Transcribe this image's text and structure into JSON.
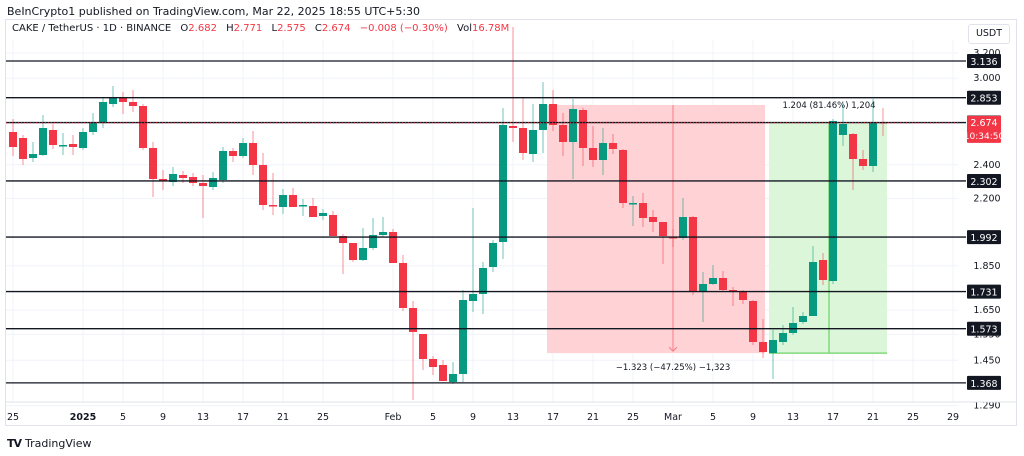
{
  "publisher_line": "BeInCrypto1 published on TradingView.com, Mar 22, 2025 18:55 UTC+5:30",
  "legend": {
    "symbol": "CAKE / TetherUS · 1D · BINANCE",
    "o_label": "O",
    "o": "2.682",
    "h_label": "H",
    "h": "2.771",
    "l_label": "L",
    "l": "2.575",
    "c_label": "C",
    "c": "2.674",
    "change": "−0.008 (−0.30%)",
    "vol_label": "Vol",
    "vol": "16.78M"
  },
  "currency": "USDT",
  "footer_brand": "TradingView",
  "colors": {
    "up": "#089981",
    "down": "#f23645",
    "short_zone": "#ffcdd2",
    "long_zone": "#d8f5d6",
    "level_line": "#131722"
  },
  "chart_data": {
    "type": "candlestick",
    "title": "CAKE / TetherUS · 1D · BINANCE",
    "scale": "log",
    "ylim": [
      1.25,
      3.35
    ],
    "y_ticks": [
      "3.200",
      "3.000",
      "2.400",
      "2.200",
      "1.850",
      "1.650",
      "1.550",
      "1.450",
      "1.290"
    ],
    "x_ticks": [
      {
        "label": "25",
        "day": 0
      },
      {
        "label": "2025",
        "day": 7,
        "bold": true
      },
      {
        "label": "5",
        "day": 11
      },
      {
        "label": "9",
        "day": 15
      },
      {
        "label": "13",
        "day": 19
      },
      {
        "label": "17",
        "day": 23
      },
      {
        "label": "21",
        "day": 27
      },
      {
        "label": "25",
        "day": 31
      },
      {
        "label": "Feb",
        "day": 38
      },
      {
        "label": "5",
        "day": 42
      },
      {
        "label": "9",
        "day": 46
      },
      {
        "label": "13",
        "day": 50
      },
      {
        "label": "17",
        "day": 54
      },
      {
        "label": "21",
        "day": 58
      },
      {
        "label": "25",
        "day": 62
      },
      {
        "label": "Mar",
        "day": 66
      },
      {
        "label": "5",
        "day": 70
      },
      {
        "label": "9",
        "day": 74
      },
      {
        "label": "13",
        "day": 78
      },
      {
        "label": "17",
        "day": 82
      },
      {
        "label": "21",
        "day": 86
      },
      {
        "label": "25",
        "day": 90
      },
      {
        "label": "29",
        "day": 94
      }
    ],
    "horizontal_levels": [
      "3.136",
      "2.853",
      "2.676",
      "2.302",
      "1.992",
      "1.731",
      "1.573",
      "1.368"
    ],
    "last_price": {
      "value": "2.674",
      "countdown": "10:34:50"
    },
    "short_position": {
      "label": "−1.323 (−47.25%) −1,323",
      "from_day": 54,
      "to_day": 75,
      "entry": 2.8,
      "target": 1.477
    },
    "long_position": {
      "label": "1.204 (81.46%) 1,204",
      "from_day": 76,
      "to_day": 87,
      "entry": 1.477,
      "target": 2.681
    },
    "candles_yp": [
      [
        132,
        119,
        156,
        147
      ],
      [
        138,
        135,
        165,
        159
      ],
      [
        158,
        142,
        162,
        154
      ],
      [
        155,
        115,
        156,
        128
      ],
      [
        130,
        124,
        149,
        145
      ],
      [
        146,
        133,
        155,
        145
      ],
      [
        144,
        135,
        155,
        147
      ],
      [
        148,
        128,
        150,
        132
      ],
      [
        132,
        113,
        135,
        122
      ],
      [
        122,
        98,
        128,
        102
      ],
      [
        104,
        86,
        107,
        98
      ],
      [
        98,
        92,
        114,
        102
      ],
      [
        102,
        90,
        112,
        106
      ],
      [
        106,
        104,
        150,
        148
      ],
      [
        148,
        142,
        197,
        179
      ],
      [
        179,
        170,
        190,
        180
      ],
      [
        182,
        167,
        186,
        174
      ],
      [
        175,
        171,
        183,
        178
      ],
      [
        177,
        173,
        186,
        183
      ],
      [
        183,
        175,
        218,
        186
      ],
      [
        187,
        172,
        190,
        178
      ],
      [
        180,
        147,
        183,
        151
      ],
      [
        151,
        148,
        162,
        156
      ],
      [
        156,
        138,
        158,
        143
      ],
      [
        143,
        131,
        175,
        165
      ],
      [
        165,
        153,
        210,
        205
      ],
      [
        205,
        173,
        215,
        206
      ],
      [
        207,
        189,
        214,
        195
      ],
      [
        195,
        188,
        207,
        207
      ],
      [
        206,
        199,
        216,
        205
      ],
      [
        206,
        198,
        217,
        217
      ],
      [
        216,
        209,
        220,
        213
      ],
      [
        215,
        211,
        236,
        236
      ],
      [
        236,
        234,
        274,
        243
      ],
      [
        243,
        243,
        262,
        260
      ],
      [
        260,
        228,
        261,
        248
      ],
      [
        248,
        218,
        250,
        235
      ],
      [
        235,
        217,
        237,
        232
      ],
      [
        232,
        229,
        263,
        263
      ],
      [
        263,
        255,
        311,
        308
      ],
      [
        308,
        301,
        400,
        332
      ],
      [
        334,
        334,
        370,
        359
      ],
      [
        359,
        356,
        375,
        367
      ],
      [
        365,
        360,
        381,
        381
      ],
      [
        382,
        362,
        384,
        374
      ],
      [
        374,
        290,
        382,
        300
      ],
      [
        301,
        208,
        312,
        294
      ],
      [
        294,
        262,
        314,
        268
      ],
      [
        267,
        240,
        272,
        243
      ],
      [
        242,
        108,
        259,
        125
      ],
      [
        126,
        27,
        142,
        128
      ],
      [
        128,
        97,
        160,
        153
      ],
      [
        154,
        104,
        162,
        130
      ],
      [
        130,
        82,
        153,
        104
      ],
      [
        104,
        90,
        131,
        125
      ],
      [
        125,
        113,
        156,
        142
      ],
      [
        142,
        99,
        179,
        109
      ],
      [
        110,
        108,
        166,
        148
      ],
      [
        148,
        126,
        167,
        160
      ],
      [
        160,
        128,
        175,
        143
      ],
      [
        143,
        134,
        154,
        149
      ],
      [
        150,
        149,
        208,
        203
      ],
      [
        204,
        196,
        226,
        203
      ],
      [
        203,
        193,
        227,
        218
      ],
      [
        217,
        210,
        232,
        222
      ],
      [
        222,
        222,
        264,
        236
      ],
      [
        237,
        229,
        247,
        238
      ],
      [
        238,
        198,
        240,
        217
      ],
      [
        217,
        216,
        295,
        292
      ],
      [
        292,
        272,
        322,
        284
      ],
      [
        284,
        265,
        285,
        278
      ],
      [
        278,
        271,
        292,
        290
      ],
      [
        290,
        287,
        306,
        291
      ],
      [
        291,
        290,
        304,
        300
      ],
      [
        301,
        300,
        345,
        342
      ],
      [
        342,
        319,
        358,
        352
      ],
      [
        353,
        330,
        379,
        340
      ],
      [
        342,
        325,
        345,
        333
      ],
      [
        333,
        307,
        335,
        323
      ],
      [
        322,
        312,
        324,
        316
      ],
      [
        316,
        246,
        316,
        262
      ],
      [
        260,
        253,
        285,
        280
      ],
      [
        281,
        119,
        284,
        121
      ],
      [
        135,
        102,
        146,
        124
      ],
      [
        134,
        133,
        190,
        159
      ],
      [
        159,
        150,
        170,
        166
      ],
      [
        166,
        99,
        172,
        122
      ],
      [
        122,
        108,
        136,
        123
      ]
    ]
  }
}
